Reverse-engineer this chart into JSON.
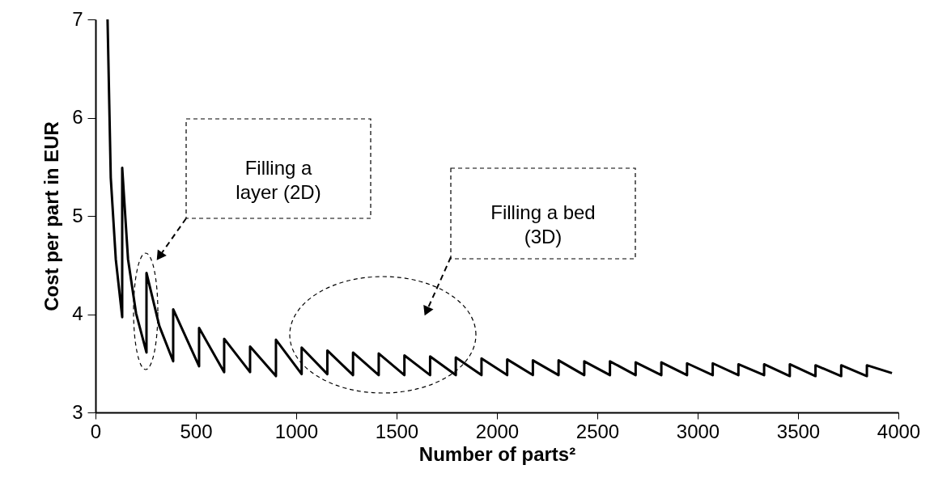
{
  "chart_data": {
    "type": "line",
    "xlabel": "Number of parts²",
    "ylabel": "Cost per part in EUR",
    "xlim": [
      0,
      4000
    ],
    "ylim": [
      3,
      7
    ],
    "xticks": [
      0,
      500,
      1000,
      1500,
      2000,
      2500,
      3000,
      3500,
      4000
    ],
    "yticks": [
      3,
      4,
      5,
      6,
      7
    ],
    "grid": false,
    "marker": "none",
    "line_style": "solid",
    "annotations": [
      "Filling a\nlayer (2D)",
      "Filling a bed\n(3D)"
    ],
    "series": [
      {
        "color": "#000000",
        "x": [
          60,
          76,
          101,
          133,
          133,
          162,
          202,
          254,
          254,
          318,
          387,
          387,
          516,
          516,
          641,
          641,
          770,
          770,
          899,
          899,
          1027,
          1027,
          1155,
          1155,
          1283,
          1283,
          1411,
          1411,
          1539,
          1539,
          1667,
          1667,
          1795,
          1795,
          1923,
          1923,
          2051,
          2051,
          2179,
          2179,
          2307,
          2307,
          2435,
          2435,
          2563,
          2563,
          2691,
          2691,
          2819,
          2819,
          2947,
          2947,
          3075,
          3075,
          3203,
          3203,
          3331,
          3331,
          3459,
          3459,
          3587,
          3587,
          3715,
          3715,
          3843,
          3843,
          3968
        ],
        "values": [
          7.0,
          5.39,
          4.56,
          3.97,
          5.49,
          4.56,
          4.01,
          3.61,
          4.42,
          3.88,
          3.52,
          4.05,
          3.47,
          3.86,
          3.41,
          3.75,
          3.41,
          3.67,
          3.37,
          3.74,
          3.39,
          3.66,
          3.39,
          3.63,
          3.38,
          3.61,
          3.38,
          3.6,
          3.38,
          3.58,
          3.38,
          3.57,
          3.38,
          3.56,
          3.38,
          3.55,
          3.38,
          3.54,
          3.38,
          3.53,
          3.38,
          3.53,
          3.38,
          3.52,
          3.38,
          3.52,
          3.38,
          3.51,
          3.38,
          3.51,
          3.38,
          3.5,
          3.38,
          3.5,
          3.38,
          3.49,
          3.38,
          3.49,
          3.37,
          3.49,
          3.37,
          3.48,
          3.37,
          3.48,
          3.37,
          3.48,
          3.4
        ]
      }
    ]
  }
}
